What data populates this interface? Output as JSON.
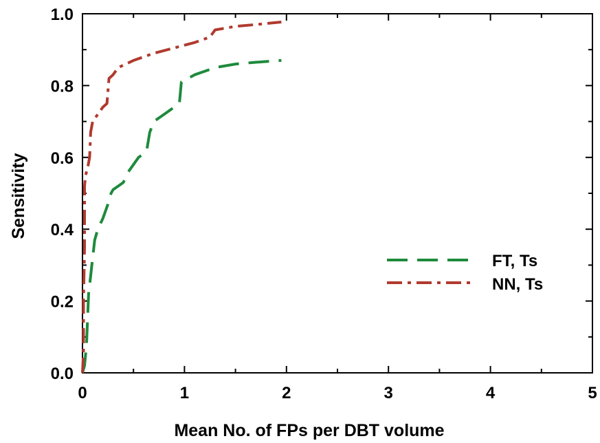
{
  "chart_data": {
    "type": "line",
    "title": "",
    "xlabel": "Mean No. of FPs per DBT volume",
    "ylabel": "Sensitivity",
    "xlim": [
      0,
      5
    ],
    "ylim": [
      0,
      1.0
    ],
    "x_ticks": [
      "0",
      "1",
      "2",
      "3",
      "4",
      "5"
    ],
    "y_ticks": [
      "0.0",
      "0.2",
      "0.4",
      "0.6",
      "0.8",
      "1.0"
    ],
    "grid": false,
    "legend_position": "center-right",
    "series": [
      {
        "name": "FT, Ts",
        "color": "#1e8a3c",
        "dash": "dashed",
        "points": [
          [
            0.0,
            0.0
          ],
          [
            0.02,
            0.02
          ],
          [
            0.03,
            0.05
          ],
          [
            0.04,
            0.08
          ],
          [
            0.05,
            0.15
          ],
          [
            0.06,
            0.22
          ],
          [
            0.08,
            0.27
          ],
          [
            0.1,
            0.32
          ],
          [
            0.12,
            0.37
          ],
          [
            0.15,
            0.4
          ],
          [
            0.2,
            0.43
          ],
          [
            0.25,
            0.47
          ],
          [
            0.28,
            0.5
          ],
          [
            0.3,
            0.51
          ],
          [
            0.35,
            0.52
          ],
          [
            0.4,
            0.53
          ],
          [
            0.45,
            0.56
          ],
          [
            0.5,
            0.58
          ],
          [
            0.55,
            0.6
          ],
          [
            0.6,
            0.61
          ],
          [
            0.63,
            0.62
          ],
          [
            0.66,
            0.67
          ],
          [
            0.7,
            0.7
          ],
          [
            0.8,
            0.72
          ],
          [
            0.9,
            0.74
          ],
          [
            0.95,
            0.75
          ],
          [
            0.97,
            0.81
          ],
          [
            1.1,
            0.83
          ],
          [
            1.3,
            0.85
          ],
          [
            1.5,
            0.86
          ],
          [
            1.7,
            0.865
          ],
          [
            1.95,
            0.87
          ]
        ]
      },
      {
        "name": "NN, Ts",
        "color": "#b03a2e",
        "dash": "dash-dot",
        "points": [
          [
            0.0,
            0.0
          ],
          [
            0.01,
            0.06
          ],
          [
            0.01,
            0.2
          ],
          [
            0.02,
            0.35
          ],
          [
            0.02,
            0.52
          ],
          [
            0.03,
            0.55
          ],
          [
            0.05,
            0.57
          ],
          [
            0.07,
            0.6
          ],
          [
            0.08,
            0.67
          ],
          [
            0.1,
            0.7
          ],
          [
            0.15,
            0.72
          ],
          [
            0.2,
            0.74
          ],
          [
            0.24,
            0.75
          ],
          [
            0.26,
            0.82
          ],
          [
            0.3,
            0.83
          ],
          [
            0.35,
            0.85
          ],
          [
            0.5,
            0.87
          ],
          [
            0.7,
            0.89
          ],
          [
            0.9,
            0.905
          ],
          [
            1.1,
            0.92
          ],
          [
            1.25,
            0.935
          ],
          [
            1.3,
            0.955
          ],
          [
            1.5,
            0.965
          ],
          [
            1.7,
            0.97
          ],
          [
            1.95,
            0.977
          ]
        ]
      }
    ]
  }
}
